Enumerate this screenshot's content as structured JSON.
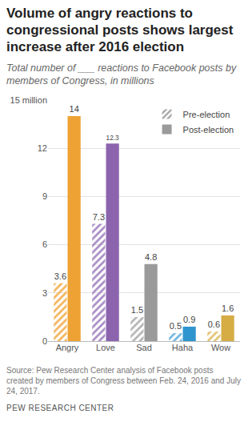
{
  "chart_data": {
    "type": "bar",
    "title": "Volume of angry reactions to congressional posts shows largest increase after 2016 election",
    "subtitle": "Total number of ___ reactions to Facebook posts by members of Congress, in millions",
    "categories": [
      "Angry",
      "Love",
      "Sad",
      "Haha",
      "Wow"
    ],
    "series": [
      {
        "name": "Pre-election",
        "color": "#9a9a9a",
        "marker": "hatched",
        "colors": [
          "#f3b45a",
          "#a88bc4",
          "#b3b3b3",
          "#6fb6e0",
          "#e2c270"
        ],
        "values": [
          3.6,
          7.3,
          1.5,
          0.5,
          0.6
        ]
      },
      {
        "name": "Post-election",
        "color": "#9a9a9a",
        "marker": "solid",
        "colors": [
          "#eea233",
          "#8c64ae",
          "#9a9a9a",
          "#2f95cf",
          "#d6ac45"
        ],
        "values": [
          14,
          12.3,
          4.8,
          0.9,
          1.6
        ]
      }
    ],
    "ylim": [
      0,
      15
    ],
    "yticks": [
      0,
      3,
      6,
      9,
      12,
      {
        "value": 15,
        "label": "15 million"
      }
    ],
    "grid": true,
    "legend": "upper right",
    "data_labels": true,
    "source": "Source: Pew Research Center analysis of Facebook posts created by members of Congress between Feb. 24, 2016 and July 24, 2017.",
    "credit": "PEW RESEARCH CENTER"
  }
}
